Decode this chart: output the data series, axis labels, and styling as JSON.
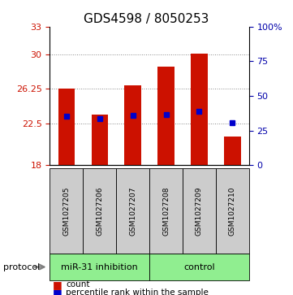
{
  "title": "GDS4598 / 8050253",
  "samples": [
    "GSM1027205",
    "GSM1027206",
    "GSM1027207",
    "GSM1027208",
    "GSM1027209",
    "GSM1027210"
  ],
  "count_values": [
    26.3,
    23.5,
    26.65,
    28.7,
    30.1,
    21.1
  ],
  "count_base": 18,
  "percentile_values": [
    23.3,
    23.0,
    23.4,
    23.5,
    23.8,
    22.6
  ],
  "ylim": [
    18,
    33
  ],
  "yticks_left": [
    18,
    22.5,
    26.25,
    30,
    33
  ],
  "yticks_left_labels": [
    "18",
    "22.5",
    "26.25",
    "30",
    "33"
  ],
  "yticks_right_vals": [
    0,
    25,
    50,
    75,
    100
  ],
  "yticks_right_labels": [
    "0",
    "25",
    "50",
    "75",
    "100%"
  ],
  "groups": [
    {
      "label": "miR-31 inhibition",
      "start": 0,
      "end": 3,
      "color": "#aaffaa"
    },
    {
      "label": "control",
      "start": 3,
      "end": 6,
      "color": "#aaffaa"
    }
  ],
  "protocol_label": "protocol",
  "bar_color": "#cc1100",
  "blue_color": "#0000cc",
  "grid_color": "#888888",
  "left_tick_color": "#cc1100",
  "right_tick_color": "#0000aa",
  "group_bg": "#cccccc",
  "group_label_bg": "#90ee90"
}
